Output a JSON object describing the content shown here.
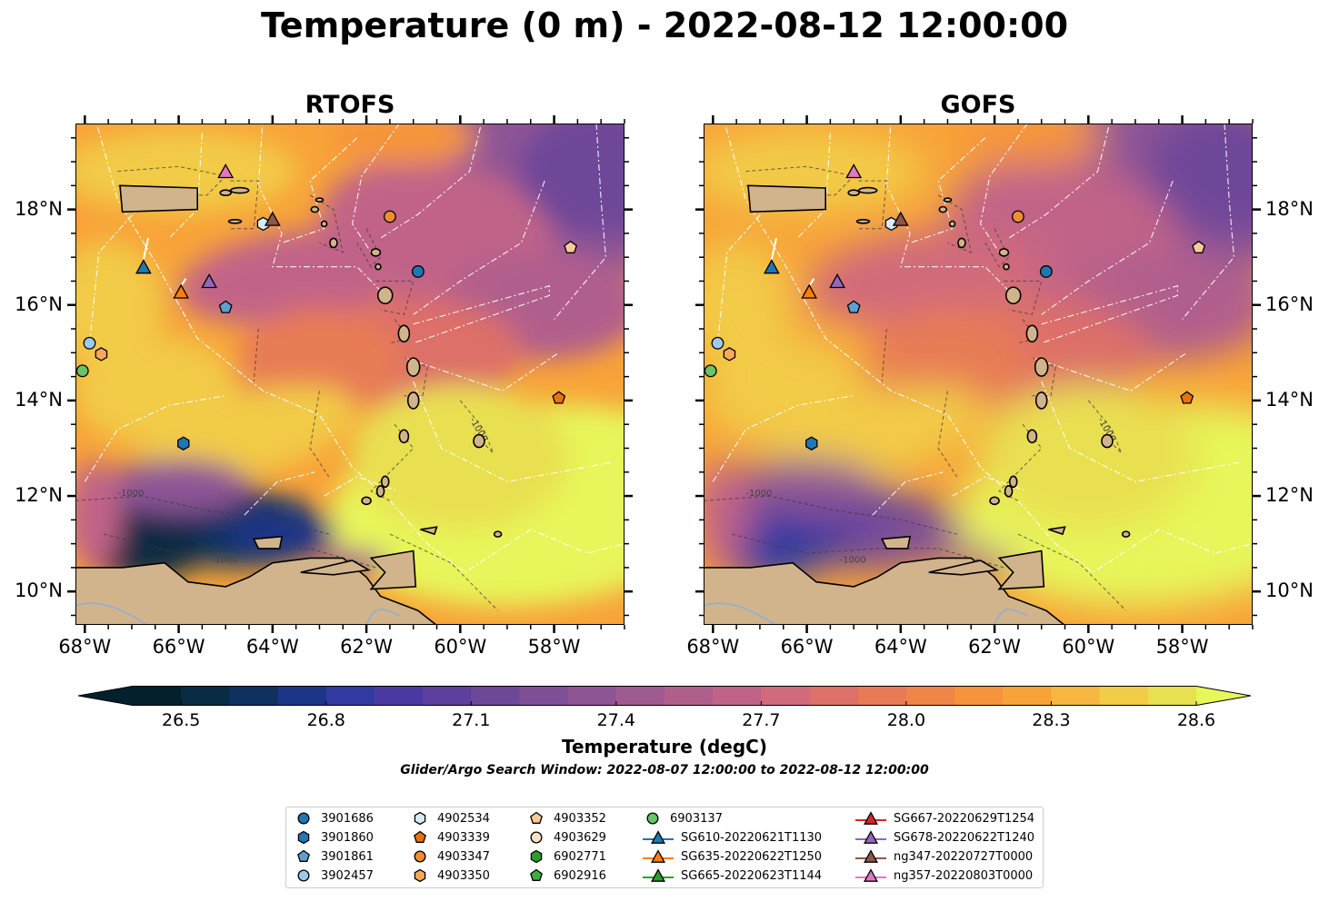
{
  "title": "Temperature (0 m) - 2022-08-12 12:00:00",
  "panels": [
    {
      "title": "RTOFS",
      "key": "rtofs"
    },
    {
      "title": "GOFS",
      "key": "gofs"
    }
  ],
  "map_extent": {
    "lon": [
      -68.2,
      -56.5
    ],
    "lat": [
      9.3,
      19.8
    ]
  },
  "lon_ticks": [
    {
      "value": -68,
      "label": "68°W"
    },
    {
      "value": -66,
      "label": "66°W"
    },
    {
      "value": -64,
      "label": "64°W"
    },
    {
      "value": -62,
      "label": "62°W"
    },
    {
      "value": -60,
      "label": "60°W"
    },
    {
      "value": -58,
      "label": "58°W"
    }
  ],
  "lat_ticks": [
    {
      "value": 10,
      "label": "10°N"
    },
    {
      "value": 12,
      "label": "12°N"
    },
    {
      "value": 14,
      "label": "14°N"
    },
    {
      "value": 16,
      "label": "16°N"
    },
    {
      "value": 18,
      "label": "18°N"
    }
  ],
  "contour_label": "-1000",
  "colorbar": {
    "label": "Temperature (degC)",
    "min": 26.4,
    "max": 28.6,
    "levels": 22,
    "ticks": [
      26.5,
      26.8,
      27.1,
      27.4,
      27.7,
      28.0,
      28.3,
      28.6
    ],
    "tick_labels": [
      "26.5",
      "26.8",
      "27.1",
      "27.4",
      "27.7",
      "28.0",
      "28.3",
      "28.6"
    ],
    "colors": [
      "#03212d",
      "#072c43",
      "#0e3160",
      "#1b3587",
      "#313aa0",
      "#4b3aa3",
      "#5d3f9d",
      "#6e4799",
      "#7e4f97",
      "#8e5495",
      "#a05a92",
      "#b05f8d",
      "#c16388",
      "#d06a7c",
      "#dd7068",
      "#e87b55",
      "#f08646",
      "#f5943b",
      "#f8a338",
      "#f7b63f",
      "#f2cb47",
      "#e9e051",
      "#e7f65a"
    ]
  },
  "search_window": "Glider/Argo Search Window: 2022-08-07 12:00:00 to 2022-08-12 12:00:00",
  "legend": [
    {
      "label": "3901686",
      "marker": "circle",
      "color": "#1f77b4"
    },
    {
      "label": "3901860",
      "marker": "hexagon",
      "color": "#1f77b4"
    },
    {
      "label": "3901861",
      "marker": "pentagon",
      "color": "#5f9fd1"
    },
    {
      "label": "3902457",
      "marker": "circle",
      "color": "#9ecae9"
    },
    {
      "label": "4902534",
      "marker": "hexagon",
      "color": "#d7eaf7"
    },
    {
      "label": "4903339",
      "marker": "pentagon",
      "color": "#e6730f"
    },
    {
      "label": "4903347",
      "marker": "circle",
      "color": "#f28b31"
    },
    {
      "label": "4903350",
      "marker": "hexagon",
      "color": "#f7a959"
    },
    {
      "label": "4903352",
      "marker": "pentagon",
      "color": "#fdc89a"
    },
    {
      "label": "4903629",
      "marker": "circle",
      "color": "#fde0c6"
    },
    {
      "label": "6902771",
      "marker": "hexagon",
      "color": "#2c9c2c"
    },
    {
      "label": "6902916",
      "marker": "pentagon",
      "color": "#3cb03c"
    },
    {
      "label": "6903137",
      "marker": "circle",
      "color": "#67c467"
    },
    {
      "label": "SG610-20220621T1130",
      "marker": "triangle",
      "color": "#1f77b4"
    },
    {
      "label": "SG635-20220622T1250",
      "marker": "triangle",
      "color": "#ff7f0e"
    },
    {
      "label": "SG665-20220623T1144",
      "marker": "triangle",
      "color": "#2ca02c"
    },
    {
      "label": "SG667-20220629T1254",
      "marker": "triangle",
      "color": "#d62728"
    },
    {
      "label": "SG678-20220622T1240",
      "marker": "triangle",
      "color": "#9467bd"
    },
    {
      "label": "ng347-20220727T0000",
      "marker": "triangle",
      "color": "#8c564b"
    },
    {
      "label": "ng357-20220803T0000",
      "marker": "triangle",
      "color": "#e377c2"
    }
  ],
  "observations": [
    {
      "id": "3901686",
      "lon": -60.9,
      "lat": 16.7
    },
    {
      "id": "3901860",
      "lon": -65.9,
      "lat": 13.1
    },
    {
      "id": "3901861",
      "lon": -65.0,
      "lat": 15.95
    },
    {
      "id": "3902457",
      "lon": -67.9,
      "lat": 15.2
    },
    {
      "id": "4902534",
      "lon": -64.2,
      "lat": 17.7
    },
    {
      "id": "4903339",
      "lon": -57.9,
      "lat": 14.05
    },
    {
      "id": "4903347",
      "lon": -61.5,
      "lat": 17.85
    },
    {
      "id": "4903350",
      "lon": -67.65,
      "lat": 14.97
    },
    {
      "id": "4903352",
      "lon": -57.65,
      "lat": 17.2
    },
    {
      "id": "6903137",
      "lon": -68.05,
      "lat": 14.62
    },
    {
      "id": "SG610-20220621T1130",
      "lon": -66.75,
      "lat": 16.8
    },
    {
      "id": "SG635-20220622T1250",
      "lon": -65.95,
      "lat": 16.28
    },
    {
      "id": "SG678-20220622T1240",
      "lon": -65.35,
      "lat": 16.5
    },
    {
      "id": "ng347-20220727T0000",
      "lon": -64.0,
      "lat": 17.8
    },
    {
      "id": "ng357-20220803T0000",
      "lon": -65.0,
      "lat": 18.8
    }
  ]
}
